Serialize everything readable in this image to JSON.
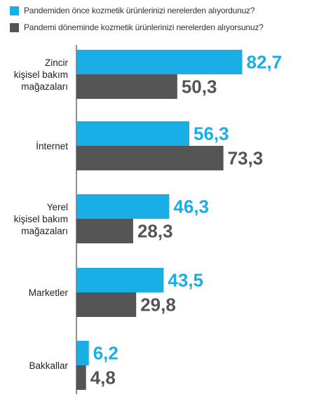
{
  "chart_data": {
    "type": "bar",
    "orientation": "horizontal",
    "categories": [
      [
        "Zincir",
        "kişisel bakım",
        "mağazaları"
      ],
      [
        "İnternet"
      ],
      [
        "Yerel",
        "kişisel bakım",
        "mağazaları"
      ],
      [
        "Marketler"
      ],
      [
        "Bakkallar"
      ]
    ],
    "series": [
      {
        "name": "Pandemiden önce kozmetik ürünlerinizi nerelerden alıyordunuz?",
        "color": "#1aaee6",
        "values": [
          82.7,
          56.3,
          46.3,
          43.5,
          6.2
        ],
        "labels": [
          "82,7",
          "56,3",
          "46,3",
          "43,5",
          "6,2"
        ]
      },
      {
        "name": "Pandemi döneminde kozmetik ürünlerinizi nerelerden alıyorsunuz?",
        "color": "#555555",
        "values": [
          50.3,
          73.3,
          28.3,
          29.8,
          4.8
        ],
        "labels": [
          "50,3",
          "73,3",
          "28,3",
          "29,8",
          "4,8"
        ]
      }
    ],
    "xlim": [
      0,
      100
    ],
    "legend": "top-left",
    "grid": false
  }
}
